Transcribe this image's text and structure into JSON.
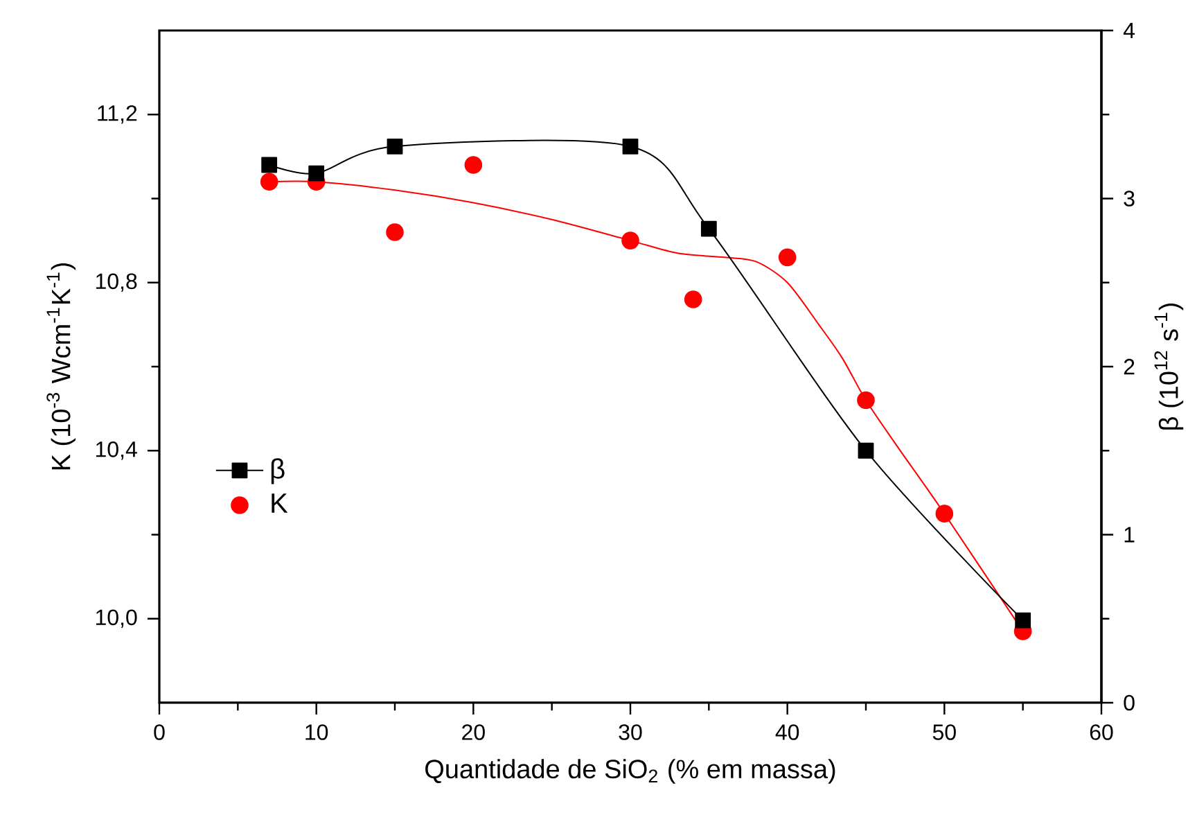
{
  "chart_data": {
    "type": "scatter",
    "xlabel": "Quantidade de SiO$_{2}$ (% em massa)",
    "ylabel": "K (10$^{-3}$ Wcm$^{-1}$K$^{-1}$)",
    "y2label": "β (10$^{12}$ s$^{-1}$)",
    "xlim": [
      0,
      60
    ],
    "xticks": [
      0,
      10,
      20,
      30,
      40,
      50,
      60
    ],
    "ylim": [
      9.8,
      11.4
    ],
    "yticks": [
      {
        "value": 10.0,
        "label": "10,0"
      },
      {
        "value": 10.4,
        "label": "10,4"
      },
      {
        "value": 10.8,
        "label": "10,8"
      },
      {
        "value": 11.2,
        "label": "11,2"
      }
    ],
    "y2lim": [
      0,
      4
    ],
    "y2ticks": [
      0,
      1,
      2,
      3,
      4
    ],
    "legend": "left",
    "grid": false,
    "series": [
      {
        "name": "β",
        "type": "line",
        "axis": "y2",
        "marker": "square",
        "color": "#000000",
        "x": [
          7,
          10,
          15,
          30,
          35,
          45,
          55
        ],
        "values": [
          3.2,
          3.15,
          3.31,
          3.31,
          2.82,
          1.5,
          0.49
        ]
      },
      {
        "name": "K",
        "axis": "y",
        "marker": "circle",
        "color": "#ff0000",
        "x": [
          7,
          10,
          15,
          20,
          30,
          34,
          40,
          45,
          50,
          55
        ],
        "values": [
          11.04,
          11.04,
          10.92,
          11.08,
          10.9,
          10.76,
          10.86,
          10.52,
          10.25,
          9.97
        ]
      },
      {
        "type": "line",
        "axis": "y",
        "marker": "none",
        "color": "#ff0000",
        "x": [
          7,
          10,
          15,
          20,
          25,
          30,
          33,
          36,
          38,
          40,
          42,
          43.5,
          45,
          47,
          50,
          55
        ],
        "values": [
          11.04,
          11.04,
          11.02,
          10.99,
          10.95,
          10.9,
          10.87,
          10.86,
          10.85,
          10.8,
          10.7,
          10.62,
          10.52,
          10.41,
          10.25,
          9.97
        ]
      }
    ]
  }
}
